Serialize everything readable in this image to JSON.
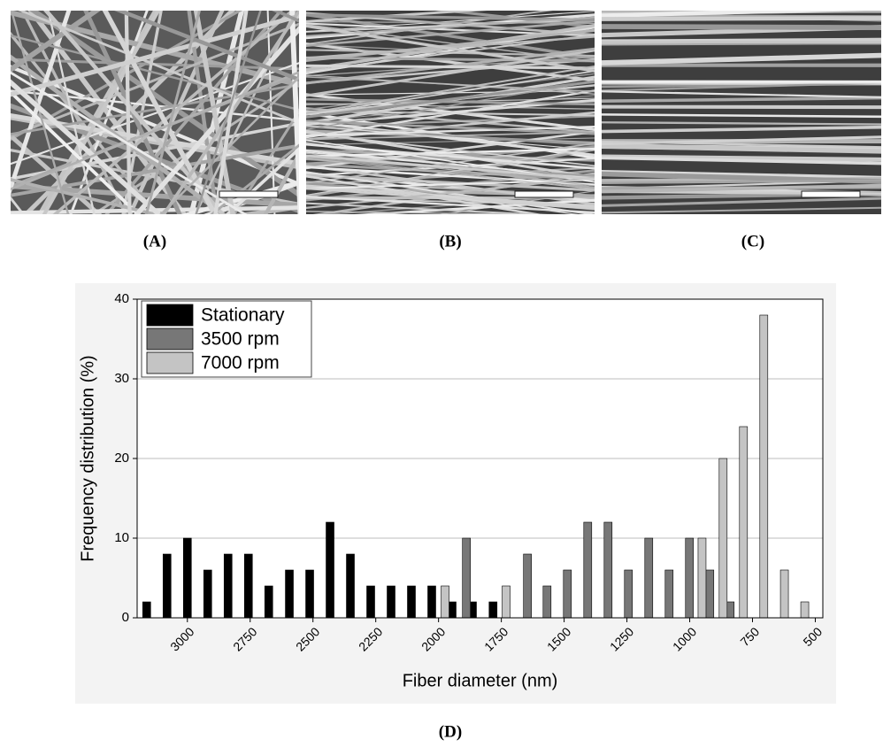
{
  "panel_labels": [
    "(A)",
    "(B)",
    "(C)",
    "(D)"
  ],
  "chart_data": {
    "type": "bar",
    "x_label": "Fiber diameter (nm)",
    "y_label": "Frequency distribution (%)",
    "xlim": [
      3200,
      470
    ],
    "ylim": [
      0,
      40
    ],
    "xticks": [
      3000,
      2750,
      2500,
      2250,
      2000,
      1750,
      1500,
      1250,
      1000,
      750,
      500
    ],
    "yticks": [
      0,
      10,
      20,
      30,
      40
    ],
    "grid": true,
    "legend": "upper left",
    "series": [
      {
        "name": "Stationary",
        "color": "#000000",
        "x": [
          3162,
          3081,
          3000,
          2919,
          2838,
          2757,
          2676,
          2594,
          2513,
          2432,
          2351,
          2270,
          2189,
          2108,
          2027,
          1946,
          1865,
          1783
        ],
        "values": [
          2,
          8,
          10,
          6,
          8,
          8,
          4,
          6,
          6,
          12,
          8,
          4,
          4,
          4,
          4,
          2,
          2,
          2
        ]
      },
      {
        "name": "3500 rpm",
        "color": "#777777",
        "x": [
          1889,
          1646,
          1568,
          1487,
          1406,
          1325,
          1244,
          1163,
          1082,
          1001,
          920,
          839
        ],
        "values": [
          10,
          8,
          4,
          6,
          12,
          12,
          6,
          10,
          6,
          10,
          6,
          2
        ]
      },
      {
        "name": "7000 rpm",
        "color": "#c4c4c4",
        "x": [
          1974,
          1731,
          951,
          867,
          786,
          705,
          623,
          542
        ],
        "values": [
          4,
          4,
          10,
          20,
          24,
          38,
          6,
          2
        ]
      }
    ]
  }
}
